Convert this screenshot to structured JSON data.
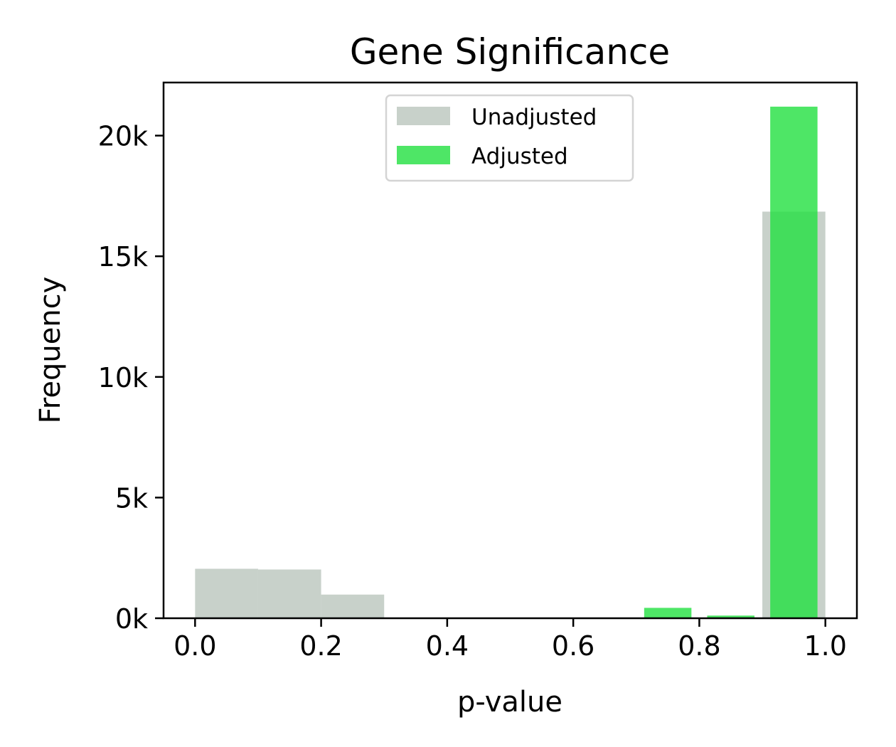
{
  "chart_data": {
    "type": "bar",
    "title": "Gene Significance",
    "xlabel": "p-value",
    "ylabel": "Frequency",
    "xlim": [
      -0.05,
      1.05
    ],
    "ylim": [
      0,
      22200
    ],
    "xticks": [
      {
        "value": 0.0,
        "label": "0.0"
      },
      {
        "value": 0.2,
        "label": "0.2"
      },
      {
        "value": 0.4,
        "label": "0.4"
      },
      {
        "value": 0.6,
        "label": "0.6"
      },
      {
        "value": 0.8,
        "label": "0.8"
      },
      {
        "value": 1.0,
        "label": "1.0"
      }
    ],
    "yticks": [
      {
        "value": 0,
        "label": "0k"
      },
      {
        "value": 5000,
        "label": "5k"
      },
      {
        "value": 10000,
        "label": "10k"
      },
      {
        "value": 15000,
        "label": "15k"
      },
      {
        "value": 20000,
        "label": "20k"
      }
    ],
    "legend_position": "top-center",
    "series": [
      {
        "name": "Unadjusted",
        "color": "#c8d1ca",
        "opacity": 1.0,
        "bins": [
          {
            "x0": 0.0,
            "x1": 0.1,
            "value": 2050
          },
          {
            "x0": 0.1,
            "x1": 0.2,
            "value": 2020
          },
          {
            "x0": 0.2,
            "x1": 0.3,
            "value": 980
          },
          {
            "x0": 0.9,
            "x1": 1.0,
            "value": 16850
          }
        ]
      },
      {
        "name": "Adjusted",
        "color": "#22e040",
        "opacity": 0.8,
        "bins": [
          {
            "x0": 0.7125,
            "x1": 0.7875,
            "value": 430
          },
          {
            "x0": 0.8125,
            "x1": 0.8875,
            "value": 110
          },
          {
            "x0": 0.9125,
            "x1": 0.9875,
            "value": 21200
          }
        ]
      }
    ]
  }
}
